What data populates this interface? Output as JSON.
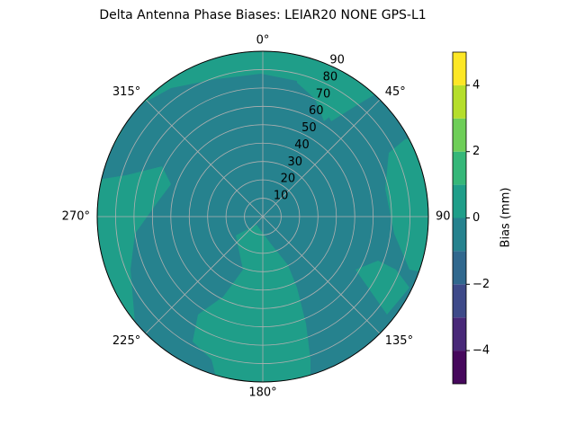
{
  "chart_data": {
    "type": "polar_contour",
    "title": "Delta Antenna Phase Biases: LEIAR20         NONE GPS-L1",
    "colorbar_label": "Bias (mm)",
    "levels": [
      -5,
      -4,
      -3,
      -2,
      -1,
      0,
      1,
      2,
      3,
      4,
      5
    ],
    "colors": [
      "#46085c",
      "#482878",
      "#3e4a89",
      "#31688e",
      "#26828e",
      "#1f9e89",
      "#35b779",
      "#6ece58",
      "#b5de2b",
      "#fde725"
    ],
    "colorbar_ticks": [
      {
        "value": -4,
        "label": "−4"
      },
      {
        "value": -2,
        "label": "−2"
      },
      0,
      2,
      4
    ],
    "rlim": [
      0,
      90
    ],
    "rticks": [
      10,
      20,
      30,
      40,
      50,
      60,
      70,
      80,
      90
    ],
    "thetaticks": [
      {
        "value": 0,
        "label": "0°"
      },
      {
        "value": 45,
        "label": "45°"
      },
      {
        "value": 90,
        "label": "90"
      },
      {
        "value": 135,
        "label": "135°"
      },
      {
        "value": 180,
        "label": "180°"
      },
      {
        "value": 225,
        "label": "225°"
      },
      {
        "value": 270,
        "label": "270°"
      },
      {
        "value": 315,
        "label": "315°"
      }
    ],
    "grid": true
  }
}
